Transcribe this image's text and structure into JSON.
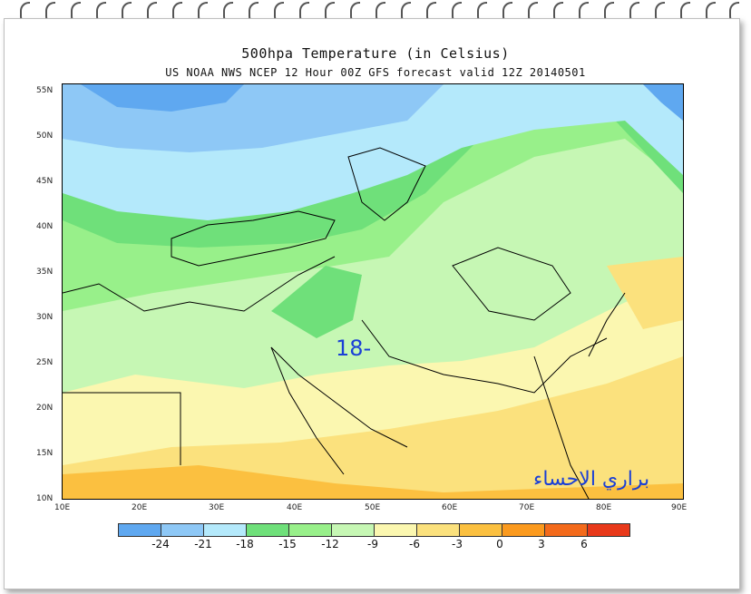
{
  "title": "500hpa  Temperature (in Celsius)",
  "subtitle": "US NOAA NWS NCEP 12 Hour 00Z GFS forecast valid 12Z 20140501",
  "overlay_value": "18-",
  "watermark": "براري الاحساء",
  "latitude_labels": [
    "55N",
    "50N",
    "45N",
    "40N",
    "35N",
    "30N",
    "25N",
    "20N",
    "15N",
    "10N"
  ],
  "longitude_labels": [
    "10E",
    "20E",
    "30E",
    "40E",
    "50E",
    "60E",
    "70E",
    "80E",
    "90E"
  ],
  "colorbar": {
    "ticks": [
      "-24",
      "-21",
      "-18",
      "-15",
      "-12",
      "-9",
      "-6",
      "-3",
      "0",
      "3",
      "6"
    ],
    "colors": [
      "#5fa8f0",
      "#8ec8f6",
      "#b4e9fb",
      "#6fe07a",
      "#98f08a",
      "#c6f7b4",
      "#fbf7b0",
      "#fbe17d",
      "#fbc040",
      "#fb9a1e",
      "#f36a1b",
      "#e8391a"
    ]
  },
  "palette": {
    "coast": "#000000",
    "overlay": "#1a3fd6"
  }
}
